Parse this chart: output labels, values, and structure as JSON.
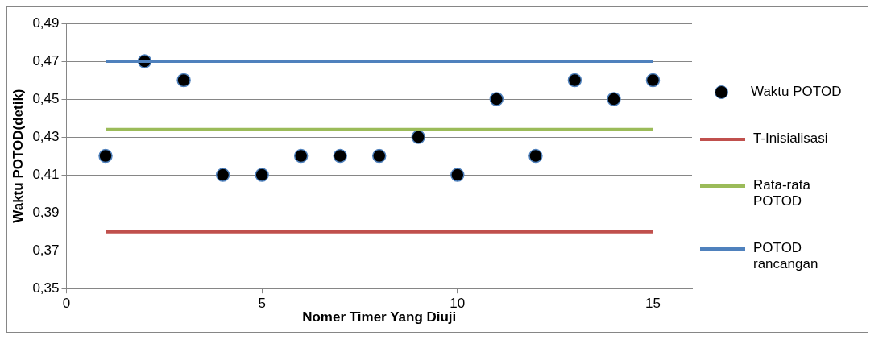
{
  "chart_data": {
    "type": "scatter",
    "xlabel": "Nomer Timer Yang Diuji",
    "ylabel": "Waktu POTOD(detik)",
    "xlim": [
      0,
      16
    ],
    "xticks": [
      0,
      5,
      10,
      15
    ],
    "ylim": [
      0.35,
      0.49
    ],
    "yticks": [
      {
        "value": 0.35,
        "label": "0,35"
      },
      {
        "value": 0.37,
        "label": "0,37"
      },
      {
        "value": 0.39,
        "label": "0,39"
      },
      {
        "value": 0.41,
        "label": "0,41"
      },
      {
        "value": 0.43,
        "label": "0,43"
      },
      {
        "value": 0.45,
        "label": "0,45"
      },
      {
        "value": 0.47,
        "label": "0,47"
      },
      {
        "value": 0.49,
        "label": "0,49"
      }
    ],
    "grid": "y",
    "legend": "right",
    "series": [
      {
        "name": "Waktu POTOD",
        "type": "scatter",
        "color": "#000000",
        "marker": "circle",
        "x": [
          1,
          2,
          3,
          4,
          5,
          6,
          7,
          8,
          9,
          10,
          11,
          12,
          13,
          14,
          15
        ],
        "values": [
          0.42,
          0.47,
          0.46,
          0.41,
          0.41,
          0.42,
          0.42,
          0.42,
          0.43,
          0.41,
          0.45,
          0.42,
          0.46,
          0.45,
          0.46
        ]
      },
      {
        "name": "T-Inisialisasi",
        "type": "line",
        "color": "#c0504d",
        "marker": "none",
        "x": [
          1,
          15
        ],
        "values": [
          0.38,
          0.38
        ]
      },
      {
        "name": "Rata-rata POTOD",
        "type": "line",
        "color": "#9bbb59",
        "marker": "none",
        "x": [
          1,
          15
        ],
        "values": [
          0.434,
          0.434
        ]
      },
      {
        "name": "POTOD rancangan",
        "type": "line",
        "color": "#4f81bd",
        "marker": "none",
        "x": [
          1,
          15
        ],
        "values": [
          0.47,
          0.47
        ]
      }
    ]
  }
}
